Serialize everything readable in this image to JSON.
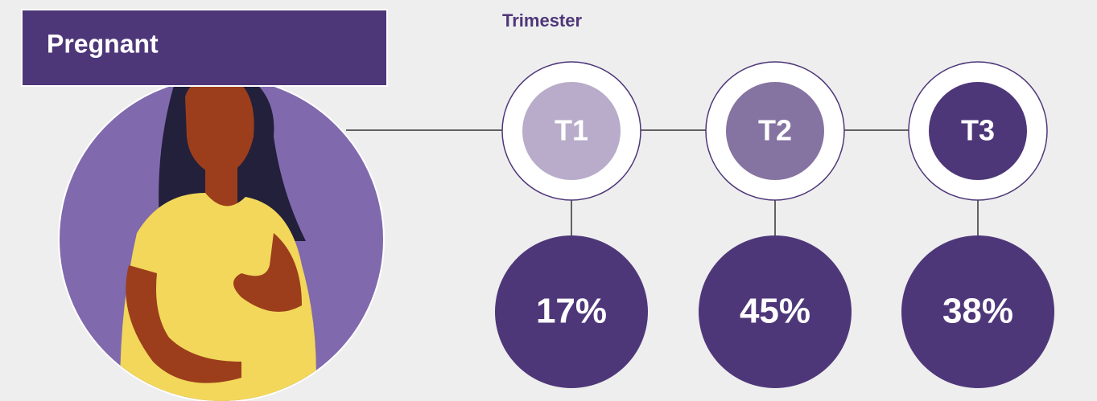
{
  "header": {
    "title": "Pregnant",
    "subtitle": "Trimester"
  },
  "nodes": [
    {
      "label": "T1",
      "value": "17%",
      "color": "#b8acca"
    },
    {
      "label": "T2",
      "value": "45%",
      "color": "#8573a1"
    },
    {
      "label": "T3",
      "value": "38%",
      "color": "#4e3779"
    }
  ]
}
